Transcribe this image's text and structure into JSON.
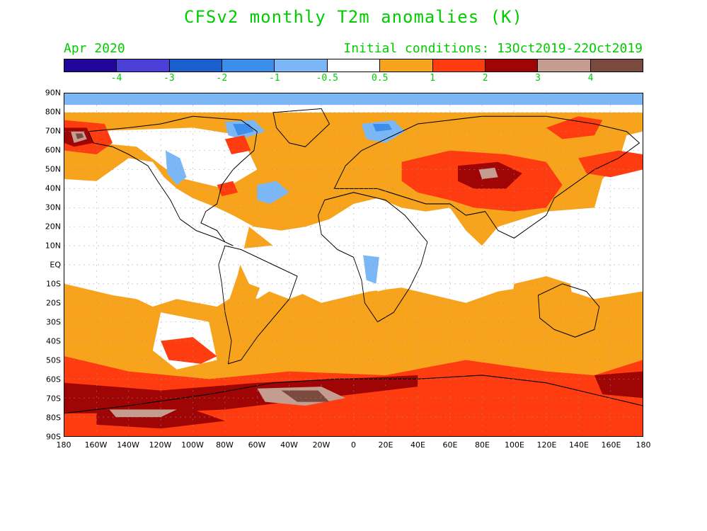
{
  "header": {
    "title": "CFSv2 monthly T2m anomalies (K)",
    "valid_month": "Apr 2020",
    "init_conditions": "Initial conditions: 13Oct2019-22Oct2019"
  },
  "legend": {
    "colors": [
      "#22069a",
      "#4a3fd6",
      "#1a5fd0",
      "#3c8eed",
      "#7bb6f5",
      "#ffffff",
      "#f7a31c",
      "#ff3c10",
      "#a00505",
      "#c49c90",
      "#7b4a3e"
    ],
    "labels": [
      "-4",
      "-3",
      "-2",
      "-1",
      "-0.5",
      "0.5",
      "1",
      "2",
      "3",
      "4"
    ]
  },
  "axes": {
    "lat_labels": [
      "90N",
      "80N",
      "70N",
      "60N",
      "50N",
      "40N",
      "30N",
      "20N",
      "10N",
      "EQ",
      "10S",
      "20S",
      "30S",
      "40S",
      "50S",
      "60S",
      "70S",
      "80S",
      "90S"
    ],
    "lon_labels": [
      "180",
      "160W",
      "140W",
      "120W",
      "100W",
      "80W",
      "60W",
      "40W",
      "20W",
      "0",
      "20E",
      "40E",
      "60E",
      "80E",
      "100E",
      "120E",
      "140E",
      "160E",
      "180"
    ]
  },
  "map": {
    "colors": {
      "ocean_warm": "#f7a31c",
      "warm": "#ff3c10",
      "very_warm": "#a00505",
      "extreme_warm": "#c49c90",
      "max_warm": "#7b4a3e",
      "cool": "#7bb6f5",
      "cold": "#3c8eed",
      "neutral": "#ffffff",
      "coast": "#000000",
      "grid": "#999999"
    }
  }
}
